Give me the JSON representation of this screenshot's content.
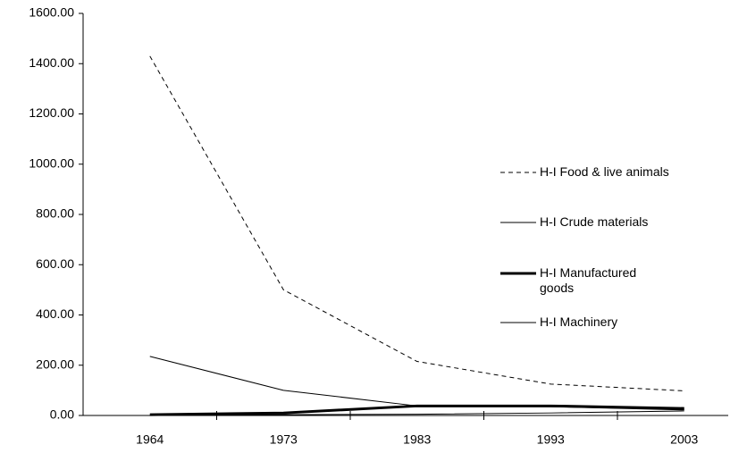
{
  "chart_data": {
    "type": "line",
    "categories": [
      "1964",
      "1973",
      "1983",
      "1993",
      "2003"
    ],
    "series": [
      {
        "name": "H-I Food & live animals",
        "color": "#000000",
        "width": 1,
        "dash": "5,4",
        "values": [
          1430,
          500,
          215,
          125,
          98
        ]
      },
      {
        "name": "H-I Crude materials",
        "color": "#000000",
        "width": 1,
        "dash": "none",
        "values": [
          235,
          100,
          38,
          35,
          22
        ]
      },
      {
        "name": "H-I Manufactured goods",
        "color": "#000000",
        "width": 3,
        "dash": "none",
        "values": [
          3,
          10,
          38,
          38,
          28
        ]
      },
      {
        "name": "H-I Machinery",
        "color": "#000000",
        "width": 1,
        "dash": "none",
        "values": [
          1,
          3,
          5,
          10,
          18
        ]
      }
    ],
    "ylim": [
      0,
      1600
    ],
    "yticks": [
      {
        "value": 0,
        "label": "0.00"
      },
      {
        "value": 200,
        "label": "200.00"
      },
      {
        "value": 400,
        "label": "400.00"
      },
      {
        "value": 600,
        "label": "600.00"
      },
      {
        "value": 800,
        "label": "800.00"
      },
      {
        "value": 1000,
        "label": "1000.00"
      },
      {
        "value": 1200,
        "label": "1200.00"
      },
      {
        "value": 1400,
        "label": "1400.00"
      },
      {
        "value": 1600,
        "label": "1600.00"
      }
    ],
    "grid": false
  }
}
